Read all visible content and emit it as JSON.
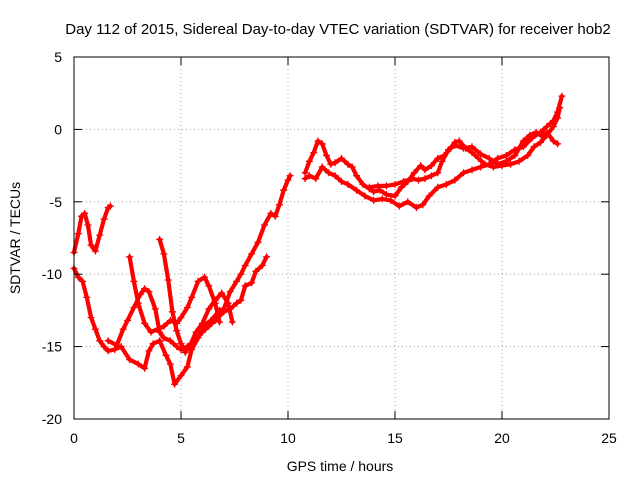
{
  "chart_data": {
    "type": "scatter",
    "title": "Day 112 of 2015, Sidereal Day-to-day VTEC variation (SDTVAR) for receiver hob2",
    "xlabel": "GPS time / hours",
    "ylabel": "SDTVAR / TECUs",
    "xlim": [
      0,
      25
    ],
    "ylim": [
      -20,
      5
    ],
    "xticks": [
      0,
      5,
      10,
      15,
      20,
      25
    ],
    "yticks": [
      -20,
      -15,
      -10,
      -5,
      0,
      5
    ],
    "grid": true,
    "marker": "plus",
    "color": "#ff0000",
    "series": [
      {
        "points": [
          [
            0,
            -8.5
          ],
          [
            0.2,
            -7.2
          ],
          [
            0.35,
            -6.0
          ],
          [
            0.5,
            -5.8
          ],
          [
            0.65,
            -6.6
          ],
          [
            0.8,
            -8.0
          ],
          [
            1.0,
            -8.4
          ],
          [
            1.2,
            -7.3
          ],
          [
            1.4,
            -6.2
          ],
          [
            1.6,
            -5.4
          ],
          [
            1.7,
            -5.3
          ]
        ]
      },
      {
        "points": [
          [
            0,
            -9.6
          ],
          [
            0.2,
            -10.2
          ],
          [
            0.4,
            -10.5
          ],
          [
            0.6,
            -11.6
          ],
          [
            0.8,
            -13.0
          ],
          [
            1.0,
            -13.8
          ],
          [
            1.2,
            -14.6
          ],
          [
            1.4,
            -15.0
          ],
          [
            1.6,
            -15.3
          ],
          [
            1.9,
            -15.2
          ],
          [
            2.2,
            -15.0
          ],
          [
            2.6,
            -15.9
          ],
          [
            3.0,
            -16.2
          ],
          [
            3.3,
            -16.5
          ],
          [
            3.5,
            -15.3
          ],
          [
            3.7,
            -14.8
          ],
          [
            4.0,
            -14.6
          ],
          [
            4.3,
            -15.6
          ],
          [
            4.5,
            -16.2
          ],
          [
            4.7,
            -17.6
          ],
          [
            5.0,
            -17.0
          ],
          [
            5.3,
            -16.4
          ],
          [
            5.5,
            -15.2
          ],
          [
            5.8,
            -14.4
          ],
          [
            6.1,
            -13.5
          ],
          [
            6.4,
            -13.2
          ],
          [
            6.8,
            -12.5
          ],
          [
            7.0,
            -12.4
          ],
          [
            7.3,
            -11.2
          ],
          [
            7.6,
            -10.5
          ],
          [
            7.8,
            -10.0
          ],
          [
            8.0,
            -9.4
          ],
          [
            8.3,
            -8.6
          ],
          [
            8.6,
            -7.8
          ],
          [
            8.9,
            -6.6
          ],
          [
            9.2,
            -5.8
          ],
          [
            9.4,
            -6.0
          ],
          [
            9.6,
            -5.2
          ],
          [
            9.8,
            -4.2
          ],
          [
            10.0,
            -3.5
          ],
          [
            10.1,
            -3.2
          ]
        ]
      },
      {
        "points": [
          [
            1.6,
            -14.6
          ],
          [
            2.0,
            -14.9
          ],
          [
            2.3,
            -13.8
          ],
          [
            2.5,
            -13.2
          ],
          [
            2.8,
            -12.3
          ],
          [
            3.1,
            -11.4
          ],
          [
            3.3,
            -11.0
          ],
          [
            3.5,
            -11.2
          ],
          [
            3.8,
            -12.4
          ],
          [
            4.0,
            -14.0
          ],
          [
            4.2,
            -14.4
          ],
          [
            4.5,
            -14.6
          ],
          [
            4.8,
            -15.0
          ],
          [
            5.0,
            -15.2
          ],
          [
            5.3,
            -15.0
          ],
          [
            5.6,
            -14.6
          ],
          [
            6.0,
            -14.0
          ],
          [
            6.3,
            -13.6
          ],
          [
            6.6,
            -13.2
          ],
          [
            7.0,
            -12.6
          ],
          [
            7.3,
            -12.4
          ],
          [
            7.6,
            -12.0
          ],
          [
            7.8,
            -11.8
          ],
          [
            8.0,
            -10.8
          ],
          [
            8.3,
            -10.6
          ],
          [
            8.5,
            -9.8
          ],
          [
            8.8,
            -9.4
          ],
          [
            9.0,
            -8.8
          ]
        ]
      },
      {
        "points": [
          [
            2.6,
            -8.8
          ],
          [
            2.8,
            -10.5
          ],
          [
            3.0,
            -12.0
          ],
          [
            3.3,
            -13.4
          ],
          [
            3.6,
            -14.0
          ],
          [
            3.9,
            -13.8
          ],
          [
            4.2,
            -13.6
          ],
          [
            4.5,
            -13.2
          ],
          [
            4.8,
            -13.4
          ],
          [
            5.0,
            -13.0
          ],
          [
            5.3,
            -12.3
          ],
          [
            5.5,
            -11.6
          ],
          [
            5.8,
            -10.5
          ],
          [
            6.1,
            -10.2
          ],
          [
            6.3,
            -10.8
          ],
          [
            6.6,
            -12.0
          ],
          [
            6.8,
            -13.3
          ]
        ]
      },
      {
        "points": [
          [
            4.0,
            -7.6
          ],
          [
            4.2,
            -8.6
          ],
          [
            4.4,
            -10.4
          ],
          [
            4.6,
            -12.6
          ],
          [
            4.8,
            -13.9
          ],
          [
            5.0,
            -14.8
          ],
          [
            5.2,
            -15.4
          ],
          [
            5.4,
            -15.0
          ],
          [
            5.7,
            -14.0
          ],
          [
            6.0,
            -13.4
          ],
          [
            6.3,
            -12.4
          ],
          [
            6.6,
            -11.8
          ],
          [
            6.9,
            -11.3
          ],
          [
            7.2,
            -12.0
          ],
          [
            7.4,
            -13.3
          ]
        ]
      },
      {
        "points": [
          [
            10.8,
            -3.0
          ],
          [
            11.0,
            -2.2
          ],
          [
            11.2,
            -1.6
          ],
          [
            11.4,
            -0.8
          ],
          [
            11.6,
            -1.0
          ],
          [
            11.8,
            -1.8
          ],
          [
            12.0,
            -2.4
          ],
          [
            12.2,
            -2.3
          ],
          [
            12.5,
            -2.0
          ],
          [
            12.8,
            -2.4
          ],
          [
            13.0,
            -2.6
          ],
          [
            13.2,
            -3.2
          ],
          [
            13.5,
            -3.8
          ],
          [
            13.8,
            -4.1
          ],
          [
            14.0,
            -4.3
          ],
          [
            14.3,
            -4.2
          ],
          [
            14.6,
            -4.5
          ],
          [
            15.0,
            -4.6
          ],
          [
            15.3,
            -4.0
          ],
          [
            15.6,
            -3.6
          ],
          [
            15.9,
            -3.0
          ],
          [
            16.2,
            -2.5
          ],
          [
            16.4,
            -2.8
          ],
          [
            16.7,
            -2.5
          ],
          [
            17.0,
            -2.0
          ],
          [
            17.3,
            -1.8
          ],
          [
            17.6,
            -1.3
          ],
          [
            17.8,
            -0.9
          ],
          [
            18.0,
            -0.8
          ],
          [
            18.3,
            -1.3
          ],
          [
            18.6,
            -1.6
          ],
          [
            18.9,
            -2.0
          ],
          [
            19.2,
            -2.4
          ],
          [
            19.6,
            -2.6
          ],
          [
            20.0,
            -2.5
          ],
          [
            20.4,
            -2.4
          ],
          [
            20.8,
            -2.2
          ],
          [
            21.2,
            -1.8
          ],
          [
            21.5,
            -1.2
          ],
          [
            21.8,
            -0.9
          ],
          [
            22.1,
            -0.4
          ],
          [
            22.4,
            0.2
          ],
          [
            22.6,
            0.8
          ],
          [
            22.7,
            1.5
          ]
        ]
      },
      {
        "points": [
          [
            10.8,
            -3.4
          ],
          [
            11.0,
            -3.2
          ],
          [
            11.3,
            -3.4
          ],
          [
            11.6,
            -2.6
          ],
          [
            11.9,
            -3.0
          ],
          [
            12.2,
            -3.2
          ],
          [
            12.5,
            -3.6
          ],
          [
            12.8,
            -3.8
          ],
          [
            13.2,
            -4.2
          ],
          [
            13.6,
            -4.6
          ],
          [
            14.0,
            -4.9
          ],
          [
            14.4,
            -4.8
          ],
          [
            14.8,
            -4.9
          ],
          [
            15.2,
            -5.3
          ],
          [
            15.6,
            -5.0
          ],
          [
            16.0,
            -5.4
          ],
          [
            16.3,
            -5.2
          ],
          [
            16.6,
            -4.6
          ],
          [
            17.0,
            -4.0
          ],
          [
            17.4,
            -3.8
          ],
          [
            17.8,
            -3.5
          ],
          [
            18.2,
            -3.0
          ],
          [
            18.6,
            -2.8
          ],
          [
            19.0,
            -2.6
          ],
          [
            19.4,
            -2.4
          ],
          [
            19.8,
            -2.0
          ],
          [
            20.2,
            -1.8
          ],
          [
            20.6,
            -1.4
          ],
          [
            21.0,
            -1.2
          ],
          [
            21.4,
            -0.6
          ],
          [
            21.8,
            -0.2
          ],
          [
            22.1,
            0.2
          ],
          [
            22.4,
            0.6
          ],
          [
            22.6,
            1.2
          ],
          [
            22.8,
            2.3
          ]
        ]
      },
      {
        "points": [
          [
            13.8,
            -4.0
          ],
          [
            14.2,
            -3.9
          ],
          [
            14.6,
            -3.9
          ],
          [
            15.0,
            -3.8
          ],
          [
            15.4,
            -3.6
          ],
          [
            15.8,
            -3.4
          ],
          [
            16.1,
            -3.5
          ],
          [
            16.4,
            -3.4
          ],
          [
            16.7,
            -3.2
          ],
          [
            17.0,
            -3.0
          ],
          [
            17.2,
            -2.2
          ],
          [
            17.5,
            -1.4
          ],
          [
            17.8,
            -1.1
          ],
          [
            18.2,
            -1.3
          ],
          [
            18.6,
            -1.2
          ],
          [
            19.0,
            -1.7
          ],
          [
            19.4,
            -2.0
          ],
          [
            19.8,
            -2.4
          ],
          [
            20.2,
            -2.2
          ],
          [
            20.6,
            -1.8
          ],
          [
            21.0,
            -0.8
          ],
          [
            21.3,
            -0.4
          ],
          [
            21.6,
            -0.2
          ],
          [
            21.9,
            -0.5
          ],
          [
            22.1,
            -0.2
          ],
          [
            22.4,
            -0.8
          ],
          [
            22.6,
            -1.0
          ]
        ]
      }
    ]
  }
}
